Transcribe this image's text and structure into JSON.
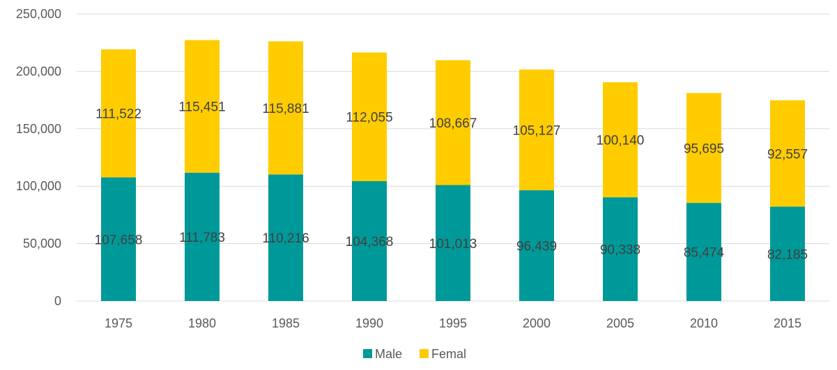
{
  "chart_data": {
    "type": "bar",
    "stacked": true,
    "categories": [
      "1975",
      "1980",
      "1985",
      "1990",
      "1995",
      "2000",
      "2005",
      "2010",
      "2015"
    ],
    "series": [
      {
        "name": "Male",
        "color": "#009999",
        "values": [
          107658,
          111783,
          110216,
          104368,
          101013,
          96439,
          90338,
          85474,
          82185
        ],
        "labels": [
          "107,658",
          "111,783",
          "110,216",
          "104,368",
          "101,013",
          "96,439",
          "90,338",
          "85,474",
          "82,185"
        ]
      },
      {
        "name": "Femal",
        "color": "#FFCC00",
        "values": [
          111522,
          115451,
          115881,
          112055,
          108667,
          105127,
          100140,
          95695,
          92557
        ],
        "labels": [
          "111,522",
          "115,451",
          "115,881",
          "112,055",
          "108,667",
          "105,127",
          "100,140",
          "95,695",
          "92,557"
        ]
      }
    ],
    "ylim": [
      0,
      250000
    ],
    "yticks": [
      0,
      50000,
      100000,
      150000,
      200000,
      250000
    ],
    "ytick_labels": [
      "0",
      "50,000",
      "100,000",
      "150,000",
      "200,000",
      "250,000"
    ],
    "grid": true,
    "legend_position": "bottom",
    "title": "",
    "xlabel": "",
    "ylabel": "",
    "colors": {
      "grid": "#D9D9D9",
      "axis_text": "#595959",
      "data_label": "#404040"
    }
  }
}
